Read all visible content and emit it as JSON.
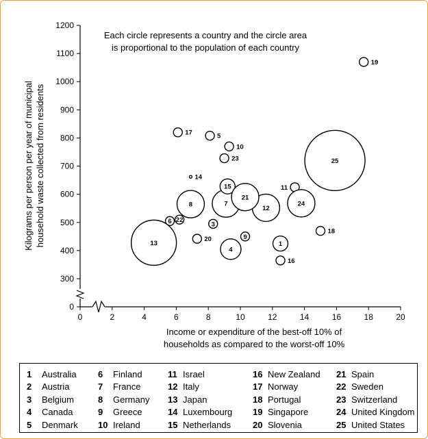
{
  "chart_data": {
    "type": "scatter",
    "title": "",
    "note": [
      "Each circle represents a country and the circle area",
      "is proportional to the population of each country"
    ],
    "xlabel": [
      "Income or expenditure of the best-off 10% of",
      "households as compared to the worst-off 10%"
    ],
    "ylabel": [
      "Kilograms per person per year of municipal",
      "household waste collected from residents"
    ],
    "xlim": [
      0,
      20
    ],
    "ylim": [
      0,
      1200
    ],
    "x_ticks": [
      "0",
      "2",
      "4",
      "6",
      "8",
      "10",
      "12",
      "14",
      "16",
      "18",
      "20"
    ],
    "y_ticks": [
      "0",
      "300",
      "400",
      "500",
      "600",
      "700",
      "800",
      "900",
      "1000",
      "1100",
      "1200"
    ],
    "y_axis_break": "between 0 and 300",
    "x_axis_break": "between 0 and 2",
    "grid": false,
    "points": [
      {
        "id": "1",
        "country": "Australia",
        "x": 12.5,
        "y": 425,
        "size": "small",
        "label": "inside"
      },
      {
        "id": "2",
        "country": "Austria",
        "x": 6.9,
        "y": 595,
        "size": "tiny",
        "label": "inside"
      },
      {
        "id": "3",
        "country": "Belgium",
        "x": 8.3,
        "y": 495,
        "size": "tiny",
        "label": "inside"
      },
      {
        "id": "4",
        "country": "Canada",
        "x": 9.4,
        "y": 405,
        "size": "medium",
        "label": "inside"
      },
      {
        "id": "5",
        "country": "Denmark",
        "x": 8.1,
        "y": 808,
        "size": "tiny",
        "label": "right"
      },
      {
        "id": "6",
        "country": "Finland",
        "x": 5.6,
        "y": 505,
        "size": "tiny",
        "label": "inside"
      },
      {
        "id": "7",
        "country": "France",
        "x": 9.1,
        "y": 567,
        "size": "large",
        "label": "inside"
      },
      {
        "id": "8",
        "country": "Germany",
        "x": 6.9,
        "y": 565,
        "size": "large",
        "label": "inside"
      },
      {
        "id": "9",
        "country": "Greece",
        "x": 10.3,
        "y": 450,
        "size": "tiny",
        "label": "inside"
      },
      {
        "id": "10",
        "country": "Ireland",
        "x": 9.3,
        "y": 770,
        "size": "tiny",
        "label": "right"
      },
      {
        "id": "11",
        "country": "Israel",
        "x": 13.4,
        "y": 625,
        "size": "tiny",
        "label": "left"
      },
      {
        "id": "12",
        "country": "Italy",
        "x": 11.6,
        "y": 552,
        "size": "large",
        "label": "inside"
      },
      {
        "id": "13",
        "country": "Japan",
        "x": 4.6,
        "y": 428,
        "size": "xlarge",
        "label": "inside"
      },
      {
        "id": "14",
        "country": "Luxembourg",
        "x": 6.9,
        "y": 662,
        "size": "dot",
        "label": "right"
      },
      {
        "id": "15",
        "country": "Netherlands",
        "x": 9.2,
        "y": 628,
        "size": "small",
        "label": "inside"
      },
      {
        "id": "16",
        "country": "New Zealand",
        "x": 12.5,
        "y": 365,
        "size": "tiny",
        "label": "right"
      },
      {
        "id": "17",
        "country": "Norway",
        "x": 6.1,
        "y": 820,
        "size": "tiny",
        "label": "right"
      },
      {
        "id": "18",
        "country": "Portugal",
        "x": 15.0,
        "y": 470,
        "size": "tiny",
        "label": "right"
      },
      {
        "id": "19",
        "country": "Singapore",
        "x": 17.7,
        "y": 1070,
        "size": "tiny",
        "label": "right"
      },
      {
        "id": "20",
        "country": "Slovenia",
        "x": 7.3,
        "y": 442,
        "size": "tiny",
        "label": "right"
      },
      {
        "id": "21",
        "country": "Spain",
        "x": 10.3,
        "y": 590,
        "size": "large",
        "label": "inside"
      },
      {
        "id": "22",
        "country": "Sweden",
        "x": 6.2,
        "y": 510,
        "size": "tiny",
        "label": "inside"
      },
      {
        "id": "23",
        "country": "Switzerland",
        "x": 9.0,
        "y": 728,
        "size": "tiny",
        "label": "right"
      },
      {
        "id": "24",
        "country": "United Kingdom",
        "x": 13.8,
        "y": 568,
        "size": "large",
        "label": "inside"
      },
      {
        "id": "25",
        "country": "United States",
        "x": 15.9,
        "y": 720,
        "size": "huge",
        "label": "inside"
      }
    ]
  },
  "legend": [
    [
      {
        "num": "1",
        "name": "Australia"
      },
      {
        "num": "2",
        "name": "Austria"
      },
      {
        "num": "3",
        "name": "Belgium"
      },
      {
        "num": "4",
        "name": "Canada"
      },
      {
        "num": "5",
        "name": "Denmark"
      }
    ],
    [
      {
        "num": "6",
        "name": "Finland"
      },
      {
        "num": "7",
        "name": "France"
      },
      {
        "num": "8",
        "name": "Germany"
      },
      {
        "num": "9",
        "name": "Greece"
      },
      {
        "num": "10",
        "name": "Ireland"
      }
    ],
    [
      {
        "num": "11",
        "name": "Israel"
      },
      {
        "num": "12",
        "name": "Italy"
      },
      {
        "num": "13",
        "name": "Japan"
      },
      {
        "num": "14",
        "name": "Luxembourg"
      },
      {
        "num": "15",
        "name": "Netherlands"
      }
    ],
    [
      {
        "num": "16",
        "name": "New Zealand"
      },
      {
        "num": "17",
        "name": "Norway"
      },
      {
        "num": "18",
        "name": "Portugal"
      },
      {
        "num": "19",
        "name": "Singapore"
      },
      {
        "num": "20",
        "name": "Slovenia"
      }
    ],
    [
      {
        "num": "21",
        "name": "Spain"
      },
      {
        "num": "22",
        "name": "Sweden"
      },
      {
        "num": "23",
        "name": "Switzerland"
      },
      {
        "num": "24",
        "name": "United Kingdom"
      },
      {
        "num": "25",
        "name": "United States"
      }
    ]
  ],
  "colors": {
    "frame": "#e9a23b",
    "ink": "#000000"
  }
}
